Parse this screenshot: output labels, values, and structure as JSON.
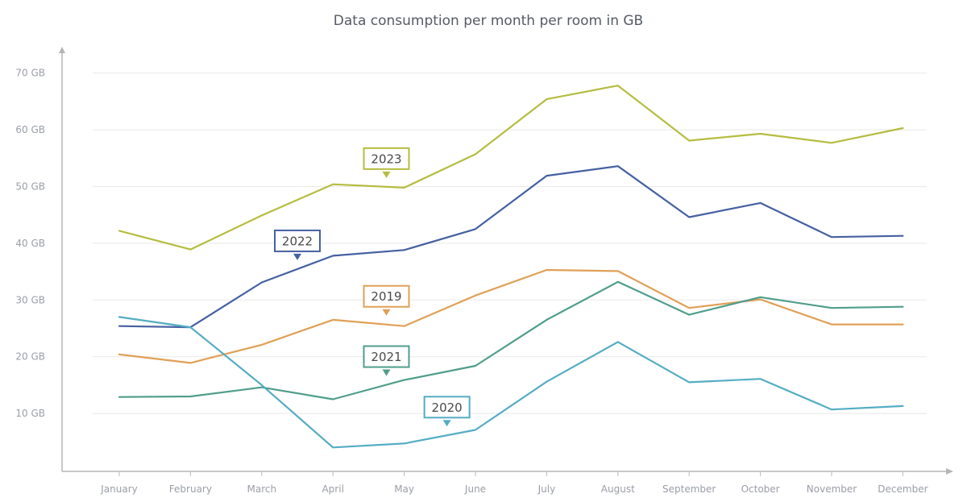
{
  "chart_data": {
    "type": "line",
    "title": "Data consumption per month per room in GB",
    "xlabel": "",
    "ylabel": "",
    "categories": [
      "January",
      "February",
      "March",
      "April",
      "May",
      "June",
      "July",
      "August",
      "September",
      "October",
      "November",
      "December"
    ],
    "y_ticks": [
      10,
      20,
      30,
      40,
      50,
      60,
      70
    ],
    "y_tick_labels": [
      "10 GB",
      "20 GB",
      "30 GB",
      "40 GB",
      "50 GB",
      "60 GB",
      "70 GB"
    ],
    "ylim": [
      0,
      70
    ],
    "grid": true,
    "series": [
      {
        "name": "2023",
        "color": "#b5bd3f",
        "label_month": "May",
        "values": [
          42.2,
          38.9,
          44.9,
          50.4,
          49.8,
          55.7,
          65.4,
          67.8,
          58.1,
          59.3,
          57.7,
          60.3
        ]
      },
      {
        "name": "2022",
        "color": "#4560a2",
        "label_month": "April",
        "values": [
          25.4,
          25.2,
          33.1,
          37.8,
          38.8,
          42.5,
          51.9,
          53.6,
          44.6,
          47.1,
          41.1,
          41.3
        ]
      },
      {
        "name": "2019",
        "color": "#e0a056",
        "label_month": "May",
        "values": [
          20.4,
          18.9,
          22.1,
          26.5,
          25.4,
          30.8,
          35.3,
          35.1,
          28.6,
          30.1,
          25.7,
          25.7
        ]
      },
      {
        "name": "2021",
        "color": "#4f9e8b",
        "label_month": "May",
        "values": [
          12.9,
          13.0,
          14.6,
          12.5,
          15.9,
          18.4,
          26.5,
          33.2,
          27.4,
          30.5,
          28.6,
          28.8
        ]
      },
      {
        "name": "2020",
        "color": "#54adc4",
        "label_month": "June",
        "values": [
          27.0,
          25.2,
          15.0,
          4.0,
          4.7,
          7.1,
          15.6,
          22.6,
          15.5,
          16.1,
          10.7,
          11.3
        ]
      }
    ],
    "series_labels": [
      {
        "series": "2023",
        "text": "2023"
      },
      {
        "series": "2022",
        "text": "2022"
      },
      {
        "series": "2019",
        "text": "2019"
      },
      {
        "series": "2021",
        "text": "2021"
      },
      {
        "series": "2020",
        "text": "2020"
      }
    ]
  }
}
